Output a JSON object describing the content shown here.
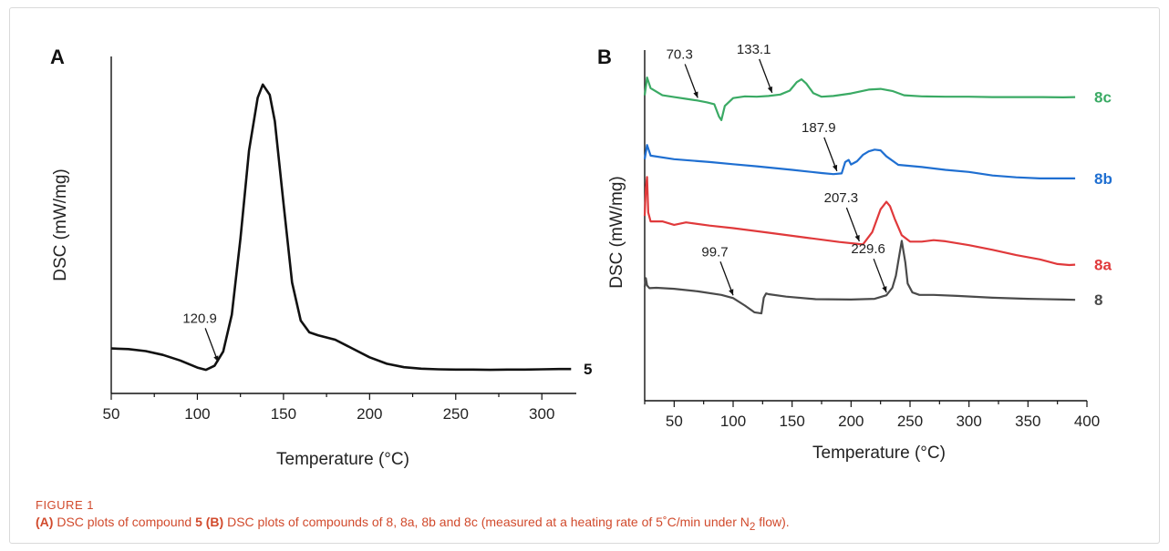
{
  "figure": {
    "label": "FIGURE 1",
    "caption_a_label": "(A)",
    "caption_a_text": " DSC plots of compound ",
    "caption_a_bold": "5",
    "caption_b_label": " (B)",
    "caption_b_text": " DSC plots of compounds of 8, 8a, 8b and 8c (measured at a heating rate of 5˚C/min under N",
    "caption_sub": "2",
    "caption_end": " flow)."
  },
  "colors": {
    "black": "#111111",
    "green": "#3aaa64",
    "blue": "#1f6fd1",
    "red": "#e0393b",
    "gray": "#4a4a4a",
    "caption": "#d14a2c"
  },
  "chart_data": [
    {
      "type": "line",
      "panel": "A",
      "xlabel": "Temperature (°C)",
      "ylabel": "DSC (mW/mg)",
      "xlim": [
        50,
        320
      ],
      "xticks": [
        50,
        100,
        150,
        200,
        250,
        300
      ],
      "y_ticks_shown": false,
      "series": [
        {
          "name": "5",
          "color": "#111111",
          "x": [
            50,
            60,
            70,
            80,
            90,
            100,
            105,
            110,
            115,
            120,
            125,
            130,
            135,
            138,
            142,
            145,
            150,
            155,
            160,
            165,
            170,
            180,
            190,
            200,
            210,
            220,
            230,
            240,
            250,
            260,
            270,
            280,
            290,
            300,
            310,
            317
          ],
          "y": [
            0.085,
            0.083,
            0.076,
            0.063,
            0.044,
            0.02,
            0.012,
            0.026,
            0.075,
            0.2,
            0.46,
            0.76,
            0.94,
            0.985,
            0.95,
            0.86,
            0.58,
            0.31,
            0.18,
            0.14,
            0.13,
            0.115,
            0.085,
            0.055,
            0.033,
            0.021,
            0.016,
            0.014,
            0.013,
            0.013,
            0.012,
            0.013,
            0.013,
            0.014,
            0.015,
            0.015
          ]
        }
      ],
      "annotations": [
        {
          "text": "120.9",
          "x": 112,
          "y": 0.03
        }
      ]
    },
    {
      "type": "line",
      "panel": "B",
      "xlabel": "Temperature (°C)",
      "ylabel": "DSC (mW/mg)",
      "xlim": [
        25,
        400
      ],
      "xticks": [
        50,
        100,
        150,
        200,
        250,
        300,
        350,
        400
      ],
      "y_ticks_shown": false,
      "series": [
        {
          "name": "8c",
          "color": "#3aaa64",
          "x": [
            25,
            27,
            30,
            40,
            50,
            60,
            70,
            78,
            84,
            88,
            90,
            93,
            100,
            110,
            120,
            130,
            140,
            148,
            154,
            158,
            162,
            168,
            175,
            185,
            200,
            215,
            225,
            235,
            245,
            260,
            280,
            300,
            320,
            340,
            360,
            380,
            390
          ],
          "y": [
            0.86,
            0.91,
            0.88,
            0.86,
            0.855,
            0.85,
            0.845,
            0.84,
            0.835,
            0.8,
            0.79,
            0.83,
            0.852,
            0.857,
            0.856,
            0.858,
            0.862,
            0.873,
            0.897,
            0.905,
            0.893,
            0.866,
            0.856,
            0.858,
            0.865,
            0.876,
            0.878,
            0.872,
            0.86,
            0.857,
            0.856,
            0.856,
            0.855,
            0.855,
            0.855,
            0.854,
            0.855
          ]
        },
        {
          "name": "8b",
          "color": "#1f6fd1",
          "x": [
            25,
            27,
            30,
            50,
            80,
            100,
            120,
            150,
            175,
            185,
            192,
            195,
            198,
            200,
            205,
            210,
            215,
            220,
            225,
            230,
            240,
            260,
            280,
            300,
            320,
            340,
            360,
            380,
            390
          ],
          "y": [
            0.68,
            0.72,
            0.69,
            0.68,
            0.672,
            0.666,
            0.66,
            0.65,
            0.641,
            0.638,
            0.64,
            0.672,
            0.678,
            0.665,
            0.674,
            0.692,
            0.702,
            0.707,
            0.705,
            0.688,
            0.664,
            0.658,
            0.65,
            0.644,
            0.634,
            0.629,
            0.626,
            0.626,
            0.626
          ]
        },
        {
          "name": "8a",
          "color": "#e0393b",
          "x": [
            25,
            26,
            27,
            28,
            30,
            40,
            50,
            60,
            80,
            100,
            130,
            160,
            190,
            210,
            218,
            225,
            230,
            233,
            237,
            243,
            250,
            260,
            270,
            280,
            300,
            320,
            340,
            360,
            375,
            385,
            390
          ],
          "y": [
            0.52,
            0.6,
            0.63,
            0.53,
            0.505,
            0.505,
            0.495,
            0.502,
            0.493,
            0.486,
            0.473,
            0.46,
            0.447,
            0.44,
            0.475,
            0.539,
            0.56,
            0.548,
            0.512,
            0.466,
            0.448,
            0.448,
            0.452,
            0.449,
            0.438,
            0.425,
            0.41,
            0.398,
            0.385,
            0.382,
            0.383
          ]
        },
        {
          "name": "8",
          "color": "#4a4a4a",
          "x": [
            25,
            26,
            27,
            29,
            35,
            50,
            70,
            90,
            100,
            110,
            118,
            124,
            126,
            128,
            130,
            145,
            170,
            200,
            220,
            230,
            235,
            238,
            240,
            243,
            246,
            248,
            252,
            258,
            270,
            290,
            320,
            350,
            380,
            390
          ],
          "y": [
            0.32,
            0.345,
            0.325,
            0.317,
            0.318,
            0.315,
            0.308,
            0.298,
            0.289,
            0.268,
            0.249,
            0.246,
            0.29,
            0.302,
            0.3,
            0.293,
            0.286,
            0.285,
            0.287,
            0.297,
            0.318,
            0.352,
            0.392,
            0.45,
            0.39,
            0.33,
            0.305,
            0.298,
            0.298,
            0.295,
            0.29,
            0.287,
            0.285,
            0.284
          ]
        }
      ],
      "annotations": [
        {
          "text": "70.3",
          "x": 70,
          "series": "8c"
        },
        {
          "text": "133.1",
          "x": 133,
          "series": "8c"
        },
        {
          "text": "187.9",
          "x": 188,
          "series": "8b"
        },
        {
          "text": "207.3",
          "x": 207,
          "series": "8a"
        },
        {
          "text": "99.7",
          "x": 100,
          "series": "8"
        },
        {
          "text": "229.6",
          "x": 230,
          "series": "8"
        }
      ]
    }
  ]
}
